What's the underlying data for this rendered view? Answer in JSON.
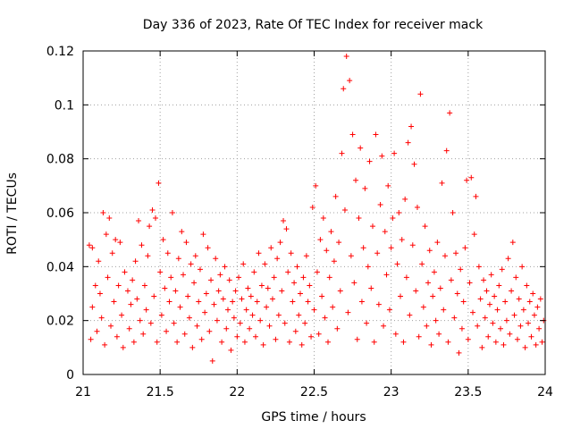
{
  "chart_data": {
    "type": "scatter",
    "title": "Day 336 of 2023, Rate Of TEC Index for receiver mack",
    "xlabel": "GPS time / hours",
    "ylabel": "ROTI / TECUs",
    "xlim": [
      21,
      24
    ],
    "ylim": [
      0,
      0.12
    ],
    "xticks": [
      "21",
      "21.5",
      "22",
      "22.5",
      "23",
      "23.5",
      "24"
    ],
    "yticks": [
      "0",
      "0.02",
      "0.04",
      "0.06",
      "0.08",
      "0.1",
      "0.12"
    ],
    "grid": true,
    "marker": "+",
    "marker_color": "#ff0000",
    "series": [
      {
        "points": [
          [
            21.04,
            0.048
          ],
          [
            21.05,
            0.013
          ],
          [
            21.06,
            0.047
          ],
          [
            21.06,
            0.025
          ],
          [
            21.08,
            0.033
          ],
          [
            21.09,
            0.016
          ],
          [
            21.1,
            0.042
          ],
          [
            21.11,
            0.03
          ],
          [
            21.12,
            0.021
          ],
          [
            21.13,
            0.06
          ],
          [
            21.14,
            0.011
          ],
          [
            21.15,
            0.052
          ],
          [
            21.16,
            0.036
          ],
          [
            21.17,
            0.058
          ],
          [
            21.18,
            0.018
          ],
          [
            21.19,
            0.045
          ],
          [
            21.2,
            0.027
          ],
          [
            21.21,
            0.05
          ],
          [
            21.22,
            0.014
          ],
          [
            21.23,
            0.033
          ],
          [
            21.24,
            0.049
          ],
          [
            21.25,
            0.022
          ],
          [
            21.26,
            0.01
          ],
          [
            21.27,
            0.038
          ],
          [
            21.29,
            0.031
          ],
          [
            21.3,
            0.017
          ],
          [
            21.31,
            0.026
          ],
          [
            21.32,
            0.035
          ],
          [
            21.33,
            0.012
          ],
          [
            21.34,
            0.042
          ],
          [
            21.35,
            0.028
          ],
          [
            21.36,
            0.057
          ],
          [
            21.37,
            0.02
          ],
          [
            21.38,
            0.048
          ],
          [
            21.39,
            0.015
          ],
          [
            21.4,
            0.033
          ],
          [
            21.41,
            0.024
          ],
          [
            21.42,
            0.044
          ],
          [
            21.43,
            0.055
          ],
          [
            21.44,
            0.019
          ],
          [
            21.45,
            0.061
          ],
          [
            21.46,
            0.029
          ],
          [
            21.47,
            0.058
          ],
          [
            21.48,
            0.012
          ],
          [
            21.49,
            0.071
          ],
          [
            21.5,
            0.038
          ],
          [
            21.51,
            0.022
          ],
          [
            21.52,
            0.05
          ],
          [
            21.53,
            0.032
          ],
          [
            21.54,
            0.016
          ],
          [
            21.55,
            0.045
          ],
          [
            21.56,
            0.027
          ],
          [
            21.57,
            0.036
          ],
          [
            21.58,
            0.06
          ],
          [
            21.59,
            0.019
          ],
          [
            21.6,
            0.031
          ],
          [
            21.61,
            0.012
          ],
          [
            21.62,
            0.043
          ],
          [
            21.63,
            0.025
          ],
          [
            21.64,
            0.053
          ],
          [
            21.65,
            0.037
          ],
          [
            21.66,
            0.015
          ],
          [
            21.67,
            0.049
          ],
          [
            21.68,
            0.029
          ],
          [
            21.69,
            0.021
          ],
          [
            21.7,
            0.041
          ],
          [
            21.71,
            0.01
          ],
          [
            21.72,
            0.034
          ],
          [
            21.73,
            0.044
          ],
          [
            21.74,
            0.018
          ],
          [
            21.75,
            0.027
          ],
          [
            21.76,
            0.039
          ],
          [
            21.77,
            0.013
          ],
          [
            21.78,
            0.052
          ],
          [
            21.79,
            0.023
          ],
          [
            21.8,
            0.03
          ],
          [
            21.81,
            0.047
          ],
          [
            21.82,
            0.016
          ],
          [
            21.83,
            0.035
          ],
          [
            21.84,
            0.005
          ],
          [
            21.85,
            0.026
          ],
          [
            21.86,
            0.043
          ],
          [
            21.87,
            0.02
          ],
          [
            21.88,
            0.031
          ],
          [
            21.89,
            0.037
          ],
          [
            21.9,
            0.012
          ],
          [
            21.91,
            0.028
          ],
          [
            21.92,
            0.04
          ],
          [
            21.93,
            0.017
          ],
          [
            21.94,
            0.024
          ],
          [
            21.95,
            0.035
          ],
          [
            21.96,
            0.009
          ],
          [
            21.97,
            0.027
          ],
          [
            21.98,
            0.021
          ],
          [
            21.99,
            0.031
          ],
          [
            22.0,
            0.014
          ],
          [
            22.01,
            0.036
          ],
          [
            22.02,
            0.019
          ],
          [
            22.03,
            0.028
          ],
          [
            22.04,
            0.041
          ],
          [
            22.05,
            0.012
          ],
          [
            22.06,
            0.024
          ],
          [
            22.07,
            0.032
          ],
          [
            22.08,
            0.017
          ],
          [
            22.09,
            0.029
          ],
          [
            22.1,
            0.022
          ],
          [
            22.11,
            0.038
          ],
          [
            22.12,
            0.014
          ],
          [
            22.13,
            0.027
          ],
          [
            22.14,
            0.045
          ],
          [
            22.15,
            0.02
          ],
          [
            22.16,
            0.033
          ],
          [
            22.17,
            0.011
          ],
          [
            22.18,
            0.041
          ],
          [
            22.19,
            0.025
          ],
          [
            22.2,
            0.032
          ],
          [
            22.21,
            0.018
          ],
          [
            22.22,
            0.047
          ],
          [
            22.23,
            0.028
          ],
          [
            22.24,
            0.036
          ],
          [
            22.25,
            0.013
          ],
          [
            22.26,
            0.043
          ],
          [
            22.27,
            0.022
          ],
          [
            22.28,
            0.049
          ],
          [
            22.29,
            0.031
          ],
          [
            22.3,
            0.057
          ],
          [
            22.31,
            0.019
          ],
          [
            22.32,
            0.054
          ],
          [
            22.33,
            0.038
          ],
          [
            22.34,
            0.012
          ],
          [
            22.35,
            0.045
          ],
          [
            22.36,
            0.027
          ],
          [
            22.37,
            0.034
          ],
          [
            22.38,
            0.016
          ],
          [
            22.39,
            0.04
          ],
          [
            22.4,
            0.022
          ],
          [
            22.41,
            0.03
          ],
          [
            22.42,
            0.011
          ],
          [
            22.43,
            0.036
          ],
          [
            22.44,
            0.019
          ],
          [
            22.45,
            0.044
          ],
          [
            22.46,
            0.027
          ],
          [
            22.47,
            0.033
          ],
          [
            22.48,
            0.014
          ],
          [
            22.49,
            0.062
          ],
          [
            22.5,
            0.024
          ],
          [
            22.51,
            0.07
          ],
          [
            22.52,
            0.038
          ],
          [
            22.53,
            0.015
          ],
          [
            22.54,
            0.05
          ],
          [
            22.55,
            0.029
          ],
          [
            22.56,
            0.058
          ],
          [
            22.57,
            0.021
          ],
          [
            22.58,
            0.046
          ],
          [
            22.59,
            0.012
          ],
          [
            22.6,
            0.036
          ],
          [
            22.61,
            0.053
          ],
          [
            22.62,
            0.025
          ],
          [
            22.63,
            0.042
          ],
          [
            22.64,
            0.066
          ],
          [
            22.65,
            0.017
          ],
          [
            22.66,
            0.049
          ],
          [
            22.67,
            0.031
          ],
          [
            22.68,
            0.082
          ],
          [
            22.69,
            0.106
          ],
          [
            22.7,
            0.061
          ],
          [
            22.71,
            0.118
          ],
          [
            22.72,
            0.023
          ],
          [
            22.73,
            0.109
          ],
          [
            22.74,
            0.044
          ],
          [
            22.75,
            0.089
          ],
          [
            22.76,
            0.034
          ],
          [
            22.77,
            0.072
          ],
          [
            22.78,
            0.013
          ],
          [
            22.79,
            0.058
          ],
          [
            22.8,
            0.084
          ],
          [
            22.81,
            0.027
          ],
          [
            22.82,
            0.047
          ],
          [
            22.83,
            0.069
          ],
          [
            22.84,
            0.019
          ],
          [
            22.85,
            0.04
          ],
          [
            22.86,
            0.079
          ],
          [
            22.87,
            0.032
          ],
          [
            22.88,
            0.055
          ],
          [
            22.89,
            0.012
          ],
          [
            22.9,
            0.089
          ],
          [
            22.91,
            0.045
          ],
          [
            22.92,
            0.026
          ],
          [
            22.93,
            0.063
          ],
          [
            22.94,
            0.081
          ],
          [
            22.95,
            0.018
          ],
          [
            22.96,
            0.053
          ],
          [
            22.97,
            0.037
          ],
          [
            22.98,
            0.07
          ],
          [
            22.99,
            0.024
          ],
          [
            23.0,
            0.047
          ],
          [
            23.01,
            0.058
          ],
          [
            23.02,
            0.082
          ],
          [
            23.03,
            0.015
          ],
          [
            23.04,
            0.041
          ],
          [
            23.05,
            0.06
          ],
          [
            23.06,
            0.029
          ],
          [
            23.07,
            0.05
          ],
          [
            23.08,
            0.012
          ],
          [
            23.09,
            0.065
          ],
          [
            23.1,
            0.036
          ],
          [
            23.11,
            0.086
          ],
          [
            23.12,
            0.022
          ],
          [
            23.13,
            0.092
          ],
          [
            23.14,
            0.048
          ],
          [
            23.15,
            0.078
          ],
          [
            23.16,
            0.031
          ],
          [
            23.17,
            0.062
          ],
          [
            23.18,
            0.014
          ],
          [
            23.19,
            0.104
          ],
          [
            23.2,
            0.041
          ],
          [
            23.21,
            0.025
          ],
          [
            23.22,
            0.055
          ],
          [
            23.23,
            0.018
          ],
          [
            23.24,
            0.034
          ],
          [
            23.25,
            0.046
          ],
          [
            23.26,
            0.011
          ],
          [
            23.27,
            0.029
          ],
          [
            23.28,
            0.038
          ],
          [
            23.29,
            0.02
          ],
          [
            23.3,
            0.049
          ],
          [
            23.31,
            0.015
          ],
          [
            23.32,
            0.032
          ],
          [
            23.33,
            0.071
          ],
          [
            23.34,
            0.024
          ],
          [
            23.35,
            0.044
          ],
          [
            23.36,
            0.083
          ],
          [
            23.37,
            0.012
          ],
          [
            23.38,
            0.097
          ],
          [
            23.39,
            0.035
          ],
          [
            23.4,
            0.06
          ],
          [
            23.41,
            0.021
          ],
          [
            23.42,
            0.045
          ],
          [
            23.43,
            0.03
          ],
          [
            23.44,
            0.008
          ],
          [
            23.45,
            0.039
          ],
          [
            23.46,
            0.017
          ],
          [
            23.47,
            0.027
          ],
          [
            23.48,
            0.047
          ],
          [
            23.49,
            0.072
          ],
          [
            23.5,
            0.013
          ],
          [
            23.51,
            0.034
          ],
          [
            23.52,
            0.073
          ],
          [
            23.53,
            0.023
          ],
          [
            23.54,
            0.052
          ],
          [
            23.55,
            0.066
          ],
          [
            23.56,
            0.018
          ],
          [
            23.57,
            0.04
          ],
          [
            23.58,
            0.028
          ],
          [
            23.59,
            0.01
          ],
          [
            23.6,
            0.035
          ],
          [
            23.61,
            0.021
          ],
          [
            23.62,
            0.031
          ],
          [
            23.63,
            0.014
          ],
          [
            23.64,
            0.026
          ],
          [
            23.65,
            0.037
          ],
          [
            23.66,
            0.019
          ],
          [
            23.67,
            0.029
          ],
          [
            23.68,
            0.012
          ],
          [
            23.69,
            0.024
          ],
          [
            23.7,
            0.033
          ],
          [
            23.71,
            0.017
          ],
          [
            23.72,
            0.039
          ],
          [
            23.73,
            0.011
          ],
          [
            23.74,
            0.027
          ],
          [
            23.75,
            0.02
          ],
          [
            23.76,
            0.043
          ],
          [
            23.77,
            0.015
          ],
          [
            23.78,
            0.031
          ],
          [
            23.79,
            0.049
          ],
          [
            23.8,
            0.022
          ],
          [
            23.81,
            0.036
          ],
          [
            23.82,
            0.013
          ],
          [
            23.83,
            0.028
          ],
          [
            23.84,
            0.018
          ],
          [
            23.85,
            0.04
          ],
          [
            23.86,
            0.024
          ],
          [
            23.87,
            0.01
          ],
          [
            23.88,
            0.033
          ],
          [
            23.89,
            0.019
          ],
          [
            23.9,
            0.027
          ],
          [
            23.91,
            0.014
          ],
          [
            23.92,
            0.03
          ],
          [
            23.93,
            0.022
          ],
          [
            23.94,
            0.011
          ],
          [
            23.95,
            0.025
          ],
          [
            23.96,
            0.017
          ],
          [
            23.97,
            0.028
          ],
          [
            23.98,
            0.012
          ],
          [
            23.99,
            0.02
          ]
        ]
      }
    ]
  }
}
